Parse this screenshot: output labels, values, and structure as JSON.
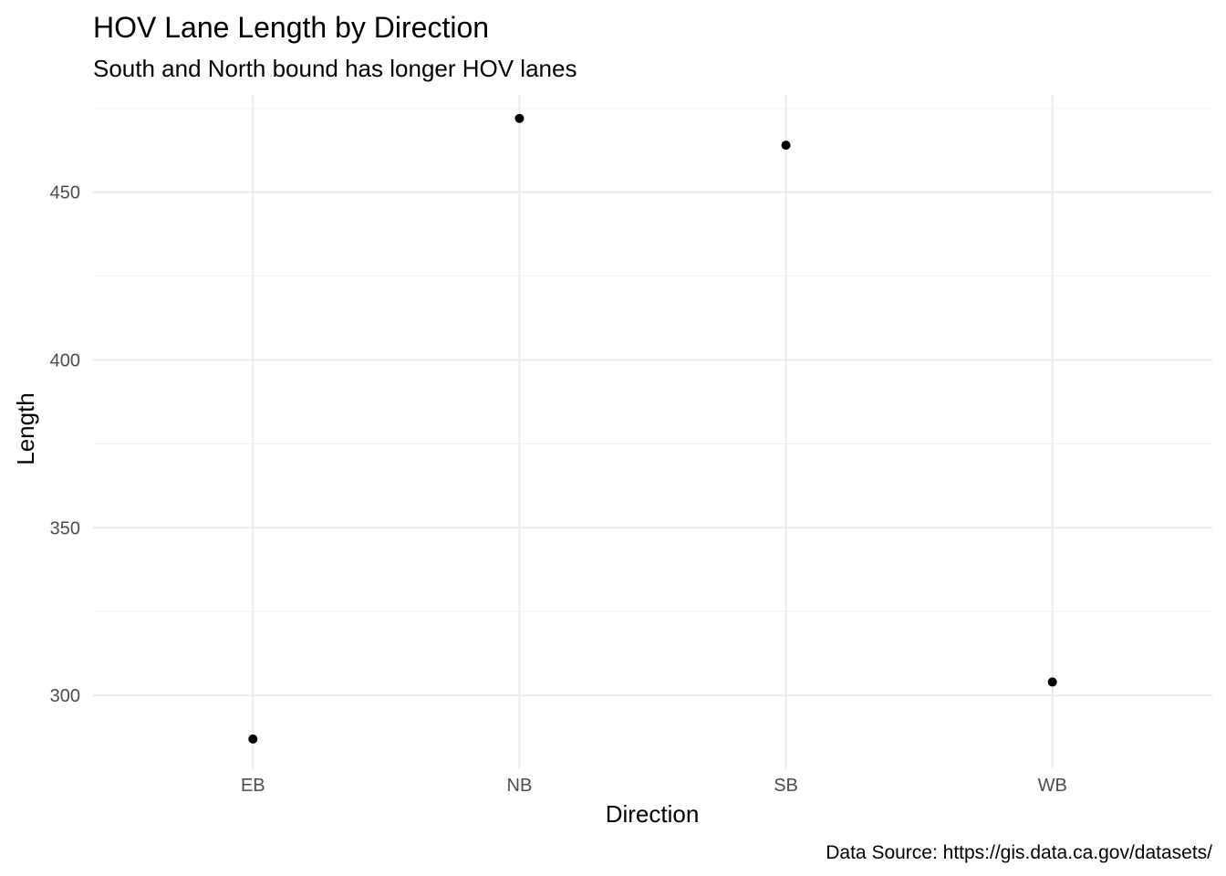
{
  "chart_data": {
    "type": "scatter",
    "title": "HOV Lane Length by Direction",
    "subtitle": "South and North bound has longer HOV lanes",
    "caption": "Data Source: https://gis.data.ca.gov/datasets/",
    "xlabel": "Direction",
    "ylabel": "Length",
    "categories": [
      "EB",
      "NB",
      "SB",
      "WB"
    ],
    "values": [
      287,
      472,
      464,
      304
    ],
    "ylim": [
      278,
      479
    ],
    "yticks": [
      300,
      350,
      400,
      450
    ],
    "grid": true,
    "point_color": "#000000"
  }
}
